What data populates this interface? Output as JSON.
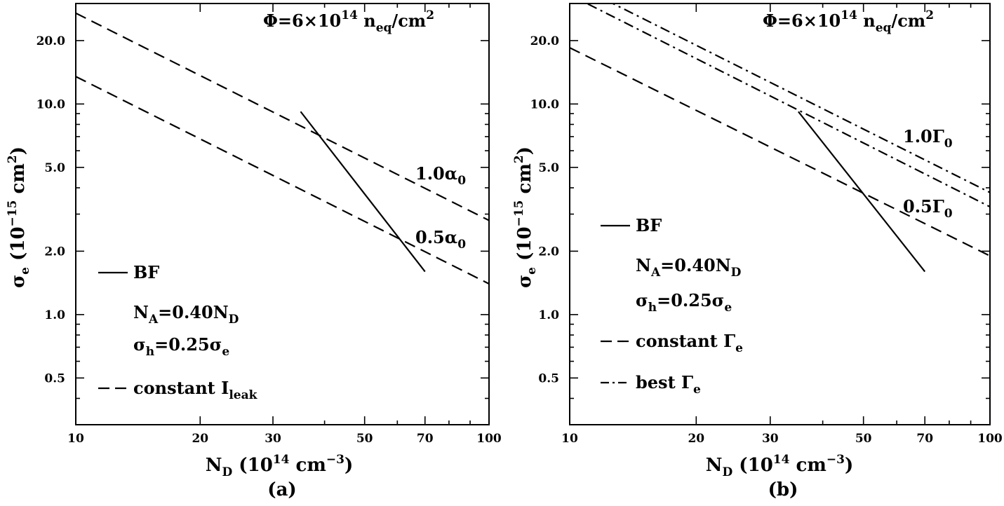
{
  "chart_data": [
    {
      "type": "line",
      "panel_label": "(a)",
      "xscale": "log",
      "yscale": "log",
      "xlim": [
        10,
        100
      ],
      "ylim": [
        0.3,
        30
      ],
      "xticks": [
        10,
        20,
        30,
        50,
        70,
        100
      ],
      "xtick_labels": [
        "10",
        "20",
        "30",
        "50",
        "70",
        "100"
      ],
      "yticks": [
        0.5,
        1.0,
        2.0,
        5.0,
        10.0,
        20.0
      ],
      "ytick_labels": [
        "0.5",
        "1.0",
        "2.0",
        "5.0",
        "10.0",
        "20.0"
      ],
      "xlabel": {
        "base": "N",
        "sub": "D",
        "text": " (10",
        "sup": "14",
        "text2": " cm",
        "sup2": "−3",
        "text3": ")"
      },
      "ylabel": {
        "base": "σ",
        "sub": "e",
        "text": " (10",
        "sup": "−15",
        "text2": " cm",
        "sup2": "2",
        "text3": ")"
      },
      "title": {
        "text": "Φ=6×10",
        "sup": "14",
        "text2": " n",
        "sub": "eq",
        "text3": "/cm",
        "sup2": "2"
      },
      "series": [
        {
          "style": "solid",
          "x": [
            35,
            70
          ],
          "y": [
            9.2,
            1.6
          ]
        },
        {
          "style": "dashed",
          "x": [
            10,
            100
          ],
          "y": [
            27.0,
            2.8
          ]
        },
        {
          "style": "dashed",
          "x": [
            10,
            100
          ],
          "y": [
            13.5,
            1.4
          ]
        }
      ],
      "annotations": [
        {
          "base": "1.0α",
          "sub": "0"
        },
        {
          "base": "0.5α",
          "sub": "0"
        }
      ],
      "legend": [
        {
          "style": "solid",
          "parts": [
            {
              "t": "BF"
            }
          ]
        },
        {
          "style": "none",
          "parts": [
            {
              "t": "N"
            },
            {
              "t": "A",
              "sub": true
            },
            {
              "t": "=0.40N"
            },
            {
              "t": "D",
              "sub": true
            }
          ]
        },
        {
          "style": "none",
          "parts": [
            {
              "t": "σ"
            },
            {
              "t": "h",
              "sub": true
            },
            {
              "t": "=0.25σ"
            },
            {
              "t": "e",
              "sub": true
            }
          ]
        },
        {
          "style": "dashed",
          "parts": [
            {
              "t": "constant I"
            },
            {
              "t": "leak",
              "sub": true
            }
          ]
        }
      ]
    },
    {
      "type": "line",
      "panel_label": "(b)",
      "xscale": "log",
      "yscale": "log",
      "xlim": [
        10,
        100
      ],
      "ylim": [
        0.3,
        30
      ],
      "xticks": [
        10,
        20,
        30,
        50,
        70,
        100
      ],
      "xtick_labels": [
        "10",
        "20",
        "30",
        "50",
        "70",
        "100"
      ],
      "yticks": [
        0.5,
        1.0,
        2.0,
        5.0,
        10.0,
        20.0
      ],
      "ytick_labels": [
        "0.5",
        "1.0",
        "2.0",
        "5.0",
        "10.0",
        "20.0"
      ],
      "xlabel": {
        "base": "N",
        "sub": "D",
        "text": " (10",
        "sup": "14",
        "text2": " cm",
        "sup2": "−3",
        "text3": ")"
      },
      "ylabel": {
        "base": "σ",
        "sub": "e",
        "text": " (10",
        "sup": "−15",
        "text2": " cm",
        "sup2": "2",
        "text3": ")"
      },
      "title": {
        "text": "Φ=6×10",
        "sup": "14",
        "text2": " n",
        "sub": "eq",
        "text3": "/cm",
        "sup2": "2"
      },
      "series": [
        {
          "style": "solid",
          "x": [
            35,
            70
          ],
          "y": [
            9.2,
            1.6
          ]
        },
        {
          "style": "dashed",
          "x": [
            10,
            100
          ],
          "y": [
            18.5,
            1.9
          ]
        },
        {
          "style": "dashdot",
          "x": [
            10,
            100
          ],
          "y": [
            38.0,
            3.8
          ]
        },
        {
          "style": "dashdot",
          "x": [
            10,
            100
          ],
          "y": [
            33.0,
            3.25
          ]
        }
      ],
      "annotations": [
        {
          "base": "1.0Γ",
          "sub": "0"
        },
        {
          "base": "0.5Γ",
          "sub": "0"
        }
      ],
      "legend": [
        {
          "style": "solid",
          "parts": [
            {
              "t": "BF"
            }
          ]
        },
        {
          "style": "none",
          "parts": [
            {
              "t": "N"
            },
            {
              "t": "A",
              "sub": true
            },
            {
              "t": "=0.40N"
            },
            {
              "t": "D",
              "sub": true
            }
          ]
        },
        {
          "style": "none",
          "parts": [
            {
              "t": "σ"
            },
            {
              "t": "h",
              "sub": true
            },
            {
              "t": "=0.25σ"
            },
            {
              "t": "e",
              "sub": true
            }
          ]
        },
        {
          "style": "dashed",
          "parts": [
            {
              "t": "constant Γ"
            },
            {
              "t": "e",
              "sub": true
            }
          ]
        },
        {
          "style": "dashdot",
          "parts": [
            {
              "t": "best Γ"
            },
            {
              "t": "e",
              "sub": true
            }
          ]
        }
      ]
    }
  ]
}
